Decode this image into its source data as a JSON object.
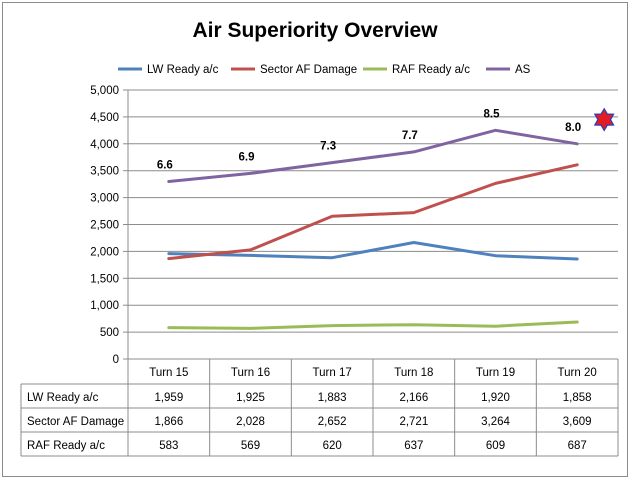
{
  "chart_data": {
    "type": "line",
    "title": "Air Superiority Overview",
    "categories": [
      "Turn 15",
      "Turn 16",
      "Turn 17",
      "Turn 18",
      "Turn 19",
      "Turn 20"
    ],
    "ylim": [
      0,
      5000
    ],
    "yticks": [
      0,
      500,
      1000,
      1500,
      2000,
      2500,
      3000,
      3500,
      4000,
      4500,
      5000
    ],
    "ytick_labels": [
      "0",
      "500",
      "1,000",
      "1,500",
      "2,000",
      "2,500",
      "3,000",
      "3,500",
      "4,000",
      "4,500",
      "5,000"
    ],
    "grid": true,
    "legend_position": "top",
    "series": [
      {
        "name": "LW Ready a/c",
        "color": "#4f81bd",
        "values": [
          1959,
          1925,
          1883,
          2166,
          1920,
          1858
        ],
        "table_values": [
          "1,959",
          "1,925",
          "1,883",
          "2,166",
          "1,920",
          "1,858"
        ]
      },
      {
        "name": "Sector AF Damage",
        "color": "#c0504d",
        "values": [
          1866,
          2028,
          2652,
          2721,
          3264,
          3609
        ],
        "table_values": [
          "1,866",
          "2,028",
          "2,652",
          "2,721",
          "3,264",
          "3,609"
        ]
      },
      {
        "name": "RAF Ready a/c",
        "color": "#9bbb59",
        "values": [
          583,
          569,
          620,
          637,
          609,
          687
        ],
        "table_values": [
          "583",
          "569",
          "620",
          "637",
          "609",
          "687"
        ]
      },
      {
        "name": "AS",
        "color": "#8064a2",
        "values": [
          3300,
          3450,
          3650,
          3850,
          4250,
          4000
        ],
        "labels": [
          "6.6",
          "6.9",
          "7.3",
          "7.7",
          "8.5",
          "8.0"
        ]
      }
    ],
    "marker": {
      "category": "Turn 20",
      "value": 4450,
      "color": "#e31c23",
      "outline": "#1f3fbf",
      "shape": "star"
    }
  }
}
